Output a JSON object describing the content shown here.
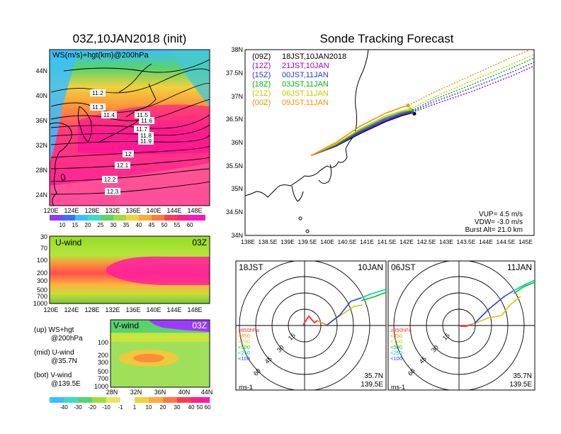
{
  "left": {
    "title": "03Z,10JAN2018 (init)",
    "map_label": "WS(m/s)+hgt(km)@200hPa",
    "lat_ticks": [
      "44N",
      "40N",
      "36N",
      "32N",
      "28N",
      "24N"
    ],
    "lon_ticks": [
      "120E",
      "124E",
      "128E",
      "132E",
      "136E",
      "140E",
      "144E",
      "148E"
    ],
    "height_labels": [
      "11.2",
      "11.3",
      "11.4",
      "11.5",
      "11.6",
      "11.7",
      "11.8",
      "11.9",
      "12",
      "12.1",
      "12.2",
      "12.3"
    ],
    "ws_colorbar": [
      "10",
      "15",
      "20",
      "25",
      "30",
      "35",
      "40",
      "45",
      "50",
      "55",
      "60"
    ],
    "uwind_label": "U-wind",
    "uwind_time": "03Z",
    "p_ticks": [
      "30",
      "70",
      "100",
      "200",
      "300",
      "500",
      "700",
      "1000"
    ],
    "vwind_label": "V-wind",
    "vwind_time": "03Z",
    "vwind_lat_ticks": [
      "28N",
      "32N",
      "36N",
      "40N",
      "44N"
    ],
    "vwind_p_ticks": [
      "100",
      "200",
      "300",
      "500",
      "700",
      "1000"
    ],
    "legend_lines": [
      "(up) WS+hgt",
      "@200hPa",
      "(mid) U-wind",
      "@35.7N",
      "(bot) V-wind",
      "@139.5E"
    ],
    "v_colorbar": [
      "-40",
      "-30",
      "-20",
      "-10",
      "-1",
      "1",
      "10",
      "20",
      "30",
      "40",
      "50",
      "60"
    ]
  },
  "right": {
    "title": "Sonde Tracking Forecast",
    "legend": [
      {
        "code": "(09Z)",
        "time": "18JST,10JAN2018",
        "color": "#000000"
      },
      {
        "code": "(12Z)",
        "time": "21JST,10JAN",
        "color": "#a000c8"
      },
      {
        "code": "(15Z)",
        "time": "00JST,11JAN",
        "color": "#1e3cff"
      },
      {
        "code": "(18Z)",
        "time": "03JST,11JAN",
        "color": "#00b400"
      },
      {
        "code": "(21Z)",
        "time": "06JST,11JAN",
        "color": "#c8c800"
      },
      {
        "code": "(00Z)",
        "time": "09JST,11JAN",
        "color": "#ff8c00"
      }
    ],
    "lat_ticks": [
      "38N",
      "37.5N",
      "37N",
      "36.5N",
      "36N",
      "35.5N",
      "35N",
      "34.5N",
      "34N"
    ],
    "lon_ticks": [
      "138E",
      "138.5E",
      "139E",
      "139.5E",
      "140E",
      "140.5E",
      "141E",
      "141.5E",
      "142E",
      "142.5E",
      "143E",
      "143.5E",
      "144E",
      "144.5E",
      "145E"
    ],
    "params": [
      "VUP= 4.5 m/s",
      "VDW= -3.0 m/s",
      "Burst Alt= 21.0 km"
    ],
    "hodo1": {
      "time": "18JST",
      "date": "10JAN",
      "lat": "35.7N",
      "lon": "139.5E",
      "unit": "ms-1",
      "rings": [
        "15",
        "30",
        "45",
        "60"
      ]
    },
    "hodo2": {
      "time": "06JST",
      "date": "11JAN",
      "lat": "35.7N",
      "lon": "139.5E",
      "unit": "ms-1",
      "rings": [
        "15",
        "30",
        "45",
        "60"
      ]
    },
    "levels": [
      {
        "label": "≥850hPa",
        "color": "#ff3030"
      },
      {
        "label": "<850",
        "color": "#ff8c00"
      },
      {
        "label": "<700",
        "color": "#d2c800"
      },
      {
        "label": "<500",
        "color": "#00c800"
      },
      {
        "label": "<250",
        "color": "#00c8c8"
      },
      {
        "label": "<100",
        "color": "#1e3cff"
      }
    ]
  },
  "chart_data": [
    {
      "type": "heatmap",
      "title": "03Z,10JAN2018 (init)",
      "subtitle": "WS(m/s)+hgt(km)@200hPa",
      "x_ticks": [
        "120E",
        "124E",
        "128E",
        "132E",
        "136E",
        "140E",
        "144E",
        "148E"
      ],
      "y_ticks": [
        "24N",
        "28N",
        "32N",
        "36N",
        "40N",
        "44N"
      ],
      "contour_labels_km": [
        11.2,
        11.3,
        11.4,
        11.5,
        11.6,
        11.7,
        11.8,
        11.9,
        12,
        12.1,
        12.2,
        12.3
      ],
      "colorbar_ms": [
        10,
        15,
        20,
        25,
        30,
        35,
        40,
        45,
        50,
        55,
        60
      ]
    },
    {
      "type": "line",
      "title": "Sonde Tracking Forecast",
      "xlim": [
        138,
        145
      ],
      "ylim": [
        34,
        38
      ],
      "series": [
        {
          "name": "(09Z) 18JST,10JAN2018",
          "color": "#000000",
          "x": [
            139.6,
            140.2,
            140.8,
            141.4,
            141.8,
            142.05,
            142.1
          ],
          "y": [
            35.72,
            35.92,
            36.2,
            36.45,
            36.58,
            36.64,
            36.62
          ]
        },
        {
          "name": "(12Z) 21JST,10JAN",
          "color": "#a000c8",
          "x": [
            139.6,
            140.2,
            140.8,
            141.4,
            141.8,
            142.05,
            142.5,
            143.5,
            144.5,
            145.0
          ],
          "y": [
            35.72,
            35.93,
            36.22,
            36.47,
            36.6,
            36.65,
            36.8,
            37.1,
            37.45,
            37.65
          ]
        },
        {
          "name": "(15Z) 00JST,11JAN",
          "color": "#1e3cff",
          "x": [
            139.6,
            140.2,
            140.8,
            141.4,
            141.8,
            142.05,
            142.5,
            143.5,
            144.5,
            145.0
          ],
          "y": [
            35.72,
            35.94,
            36.24,
            36.5,
            36.62,
            36.67,
            36.85,
            37.18,
            37.53,
            37.73
          ]
        },
        {
          "name": "(18Z) 03JST,11JAN",
          "color": "#00b400",
          "x": [
            139.6,
            140.2,
            140.8,
            141.4,
            141.8,
            142.05,
            142.5,
            143.5,
            144.5,
            145.0
          ],
          "y": [
            35.72,
            35.95,
            36.27,
            36.53,
            36.65,
            36.69,
            36.9,
            37.25,
            37.62,
            37.82
          ]
        },
        {
          "name": "(21Z) 06JST,11JAN",
          "color": "#c8c800",
          "x": [
            139.6,
            140.2,
            140.8,
            141.4,
            141.8,
            142.0,
            142.5,
            143.5,
            144.5,
            145.0
          ],
          "y": [
            35.72,
            35.97,
            36.3,
            36.57,
            36.68,
            36.72,
            36.95,
            37.33,
            37.7,
            37.9
          ]
        },
        {
          "name": "(00Z) 09JST,11JAN",
          "color": "#ff8c00",
          "x": [
            139.6,
            140.2,
            140.8,
            141.4,
            141.8,
            141.95,
            142.5,
            143.5,
            144.5,
            145.0
          ],
          "y": [
            35.72,
            36.0,
            36.36,
            36.63,
            36.76,
            36.8,
            37.05,
            37.45,
            37.85,
            38.03
          ]
        }
      ]
    }
  ]
}
